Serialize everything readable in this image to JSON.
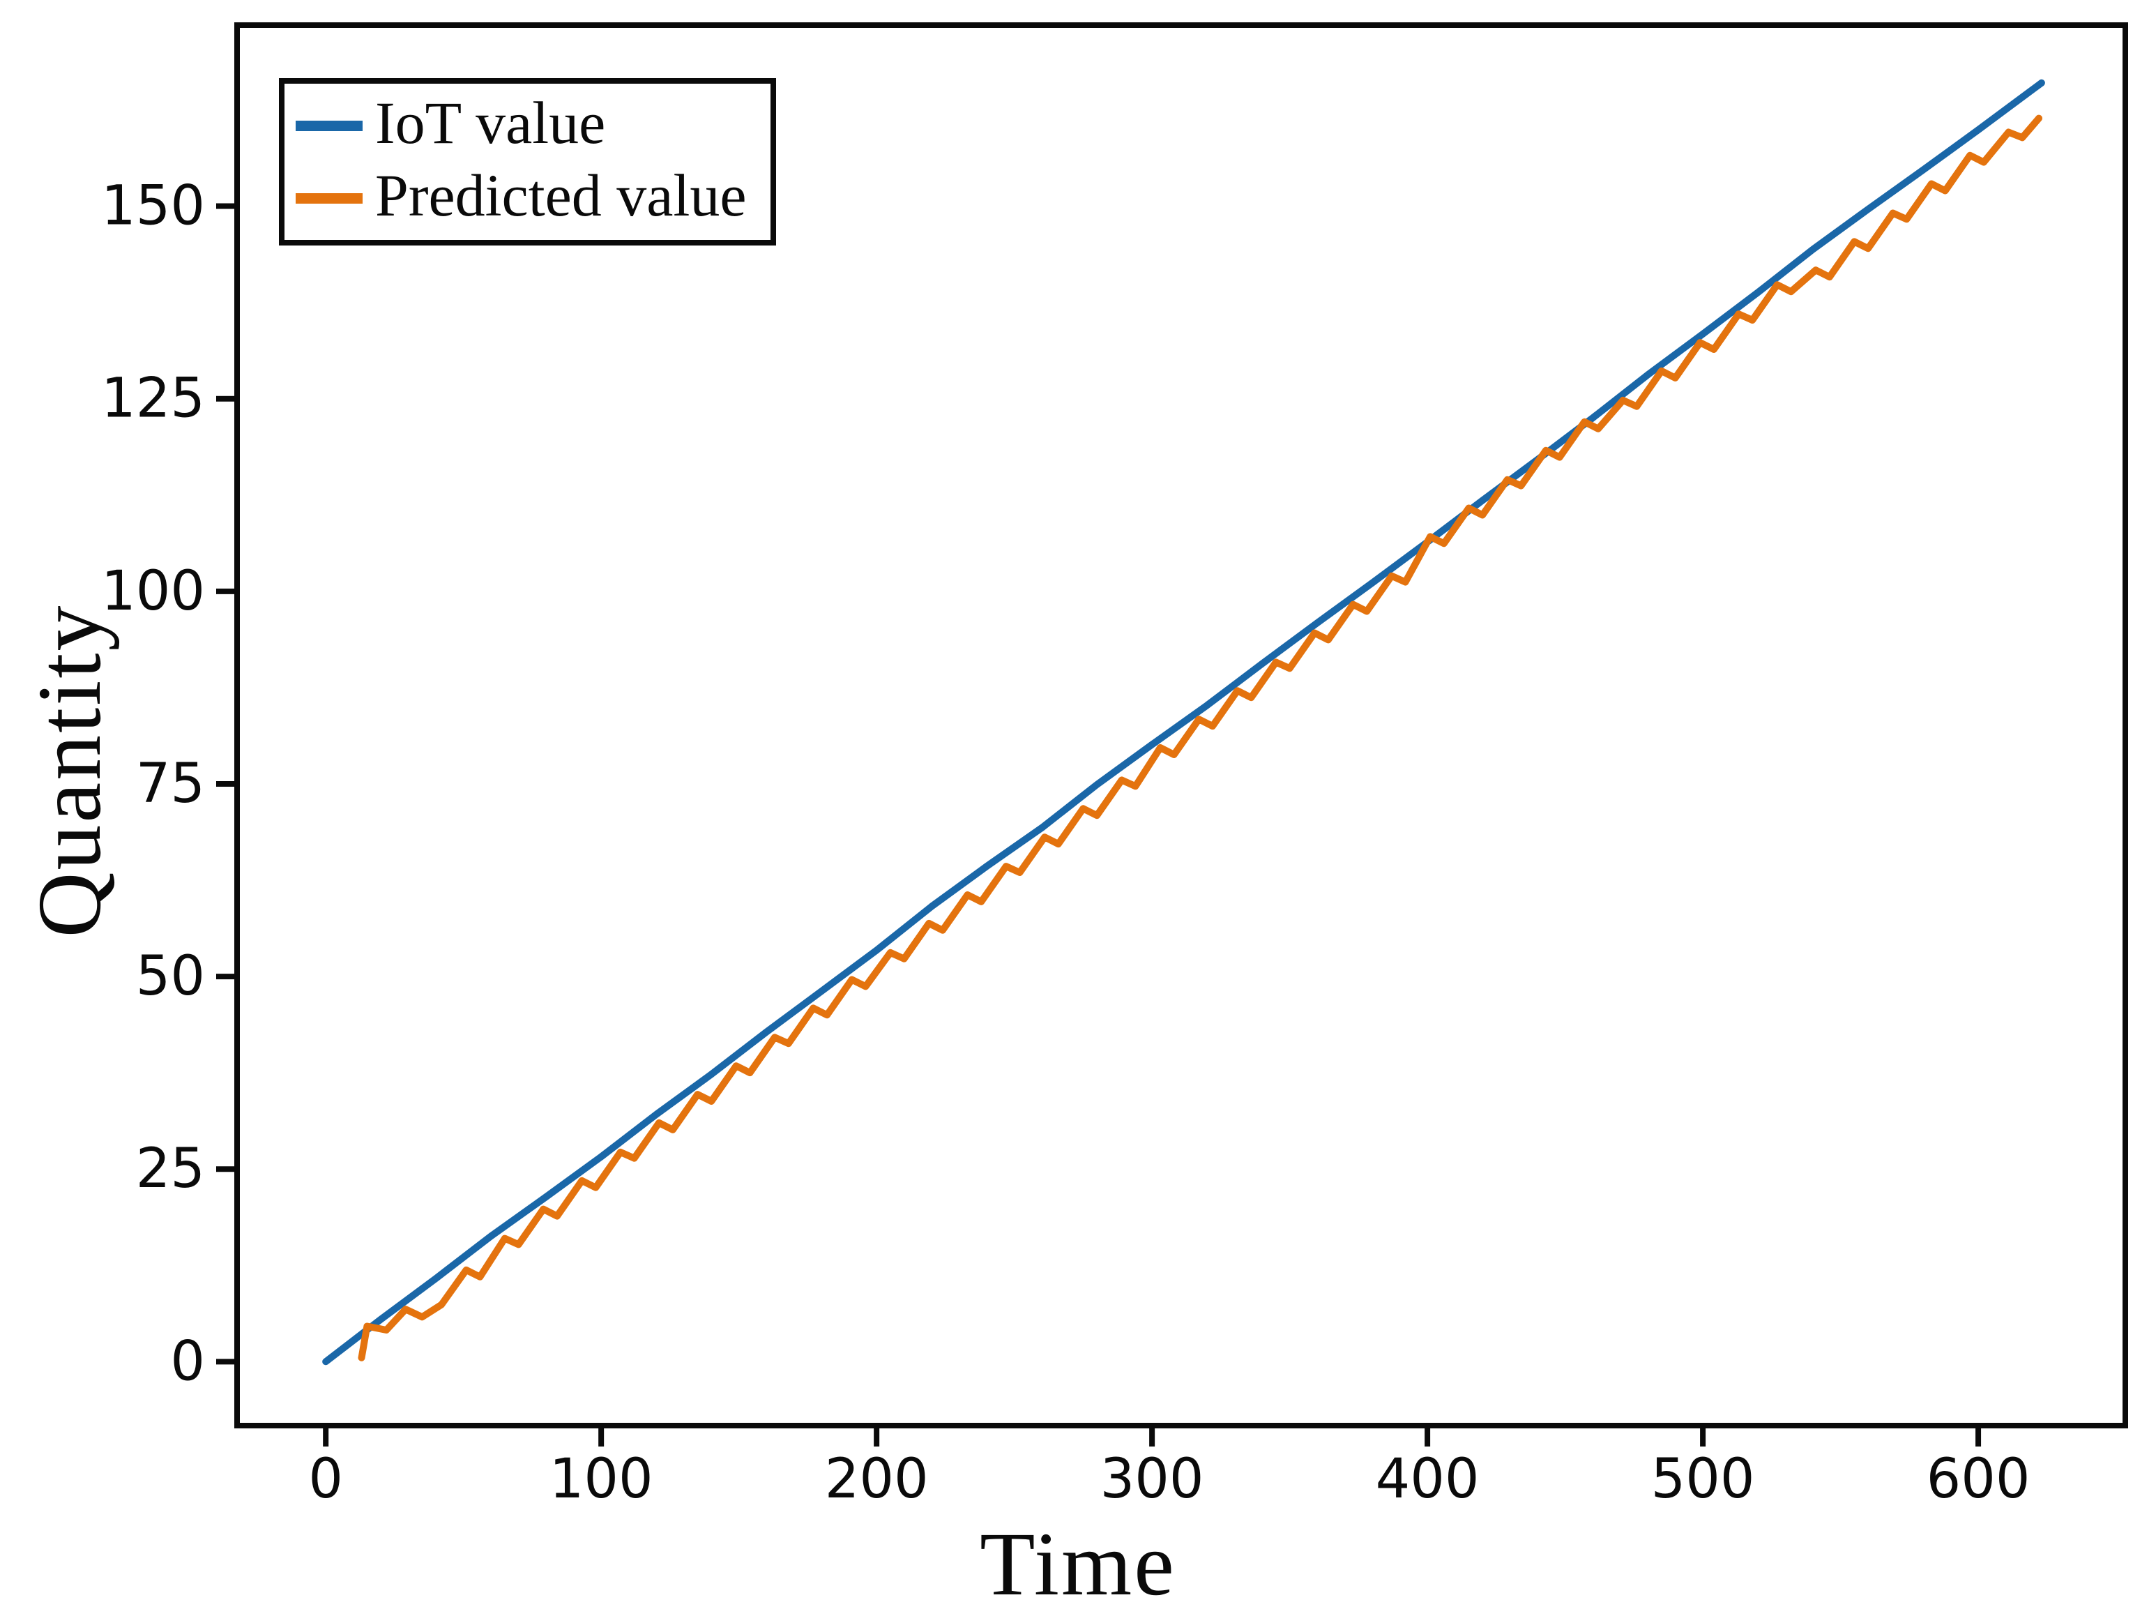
{
  "chart_data": {
    "type": "line",
    "title": "",
    "xlabel": "Time",
    "ylabel": "Quantity",
    "xlim": [
      -32.2,
      653.4
    ],
    "ylim": [
      -8.3,
      173.5
    ],
    "x_ticks": [
      0,
      100,
      200,
      300,
      400,
      500,
      600
    ],
    "y_ticks": [
      0,
      25,
      50,
      75,
      100,
      125,
      150
    ],
    "grid": false,
    "legend_position": "upper left",
    "series": [
      {
        "name": "IoT value",
        "color": "#1a67a8",
        "points": [
          [
            0,
            0.0
          ],
          [
            20,
            5.5
          ],
          [
            40,
            10.8
          ],
          [
            60,
            16.3
          ],
          [
            80,
            21.4
          ],
          [
            100,
            26.6
          ],
          [
            120,
            32.1
          ],
          [
            140,
            37.3
          ],
          [
            160,
            42.8
          ],
          [
            180,
            48.1
          ],
          [
            200,
            53.4
          ],
          [
            220,
            59.1
          ],
          [
            240,
            64.3
          ],
          [
            260,
            69.3
          ],
          [
            280,
            74.9
          ],
          [
            300,
            80.1
          ],
          [
            320,
            85.2
          ],
          [
            340,
            90.6
          ],
          [
            360,
            95.9
          ],
          [
            380,
            101.1
          ],
          [
            400,
            106.4
          ],
          [
            420,
            111.8
          ],
          [
            440,
            117.1
          ],
          [
            460,
            122.5
          ],
          [
            480,
            128.1
          ],
          [
            500,
            133.4
          ],
          [
            520,
            138.8
          ],
          [
            540,
            144.4
          ],
          [
            560,
            149.6
          ],
          [
            580,
            154.7
          ],
          [
            600,
            159.9
          ],
          [
            623,
            166.0
          ]
        ]
      },
      {
        "name": "Predicted value",
        "color": "#e4730e",
        "points": [
          [
            13,
            0.5
          ],
          [
            15,
            4.6
          ],
          [
            22,
            4.1
          ],
          [
            29,
            6.8
          ],
          [
            35,
            5.8
          ],
          [
            42,
            7.4
          ],
          [
            51,
            11.9
          ],
          [
            56,
            11.0
          ],
          [
            65,
            16.0
          ],
          [
            70,
            15.2
          ],
          [
            79,
            19.8
          ],
          [
            84,
            18.9
          ],
          [
            93,
            23.5
          ],
          [
            98,
            22.6
          ],
          [
            107,
            27.2
          ],
          [
            112,
            26.4
          ],
          [
            121,
            31.0
          ],
          [
            126,
            30.1
          ],
          [
            135,
            34.7
          ],
          [
            140,
            33.8
          ],
          [
            149,
            38.4
          ],
          [
            154,
            37.5
          ],
          [
            163,
            42.1
          ],
          [
            168,
            41.3
          ],
          [
            177,
            45.9
          ],
          [
            182,
            45.0
          ],
          [
            191,
            49.6
          ],
          [
            196,
            48.7
          ],
          [
            205,
            53.1
          ],
          [
            210,
            52.3
          ],
          [
            219,
            56.9
          ],
          [
            224,
            56.0
          ],
          [
            233,
            60.6
          ],
          [
            238,
            59.7
          ],
          [
            247,
            64.3
          ],
          [
            252,
            63.5
          ],
          [
            261,
            68.1
          ],
          [
            266,
            67.2
          ],
          [
            275,
            71.8
          ],
          [
            280,
            70.9
          ],
          [
            289,
            75.5
          ],
          [
            294,
            74.7
          ],
          [
            303,
            79.7
          ],
          [
            308,
            78.8
          ],
          [
            317,
            83.4
          ],
          [
            322,
            82.5
          ],
          [
            331,
            87.1
          ],
          [
            336,
            86.2
          ],
          [
            345,
            90.8
          ],
          [
            350,
            90.0
          ],
          [
            359,
            94.6
          ],
          [
            364,
            93.7
          ],
          [
            373,
            98.3
          ],
          [
            378,
            97.4
          ],
          [
            387,
            102.0
          ],
          [
            392,
            101.2
          ],
          [
            401,
            107.1
          ],
          [
            406,
            106.2
          ],
          [
            415,
            110.8
          ],
          [
            420,
            109.9
          ],
          [
            429,
            114.5
          ],
          [
            434,
            113.7
          ],
          [
            443,
            118.3
          ],
          [
            448,
            117.4
          ],
          [
            457,
            122.0
          ],
          [
            462,
            121.1
          ],
          [
            471,
            124.8
          ],
          [
            476,
            124.0
          ],
          [
            485,
            128.6
          ],
          [
            490,
            127.7
          ],
          [
            499,
            132.3
          ],
          [
            504,
            131.4
          ],
          [
            513,
            136.0
          ],
          [
            518,
            135.2
          ],
          [
            527,
            139.8
          ],
          [
            532,
            138.9
          ],
          [
            541,
            141.7
          ],
          [
            546,
            140.8
          ],
          [
            555,
            145.4
          ],
          [
            560,
            144.5
          ],
          [
            569,
            149.1
          ],
          [
            574,
            148.3
          ],
          [
            583,
            152.9
          ],
          [
            588,
            152.0
          ],
          [
            597,
            156.6
          ],
          [
            602,
            155.7
          ],
          [
            611,
            159.6
          ],
          [
            616,
            158.9
          ],
          [
            622,
            161.4
          ]
        ]
      }
    ]
  },
  "style": {
    "axis_color": "#0a0a0a",
    "background": "#ffffff",
    "spine_width": 8,
    "tick_length": 30,
    "line_width": 10,
    "tick_font_size": 78
  }
}
